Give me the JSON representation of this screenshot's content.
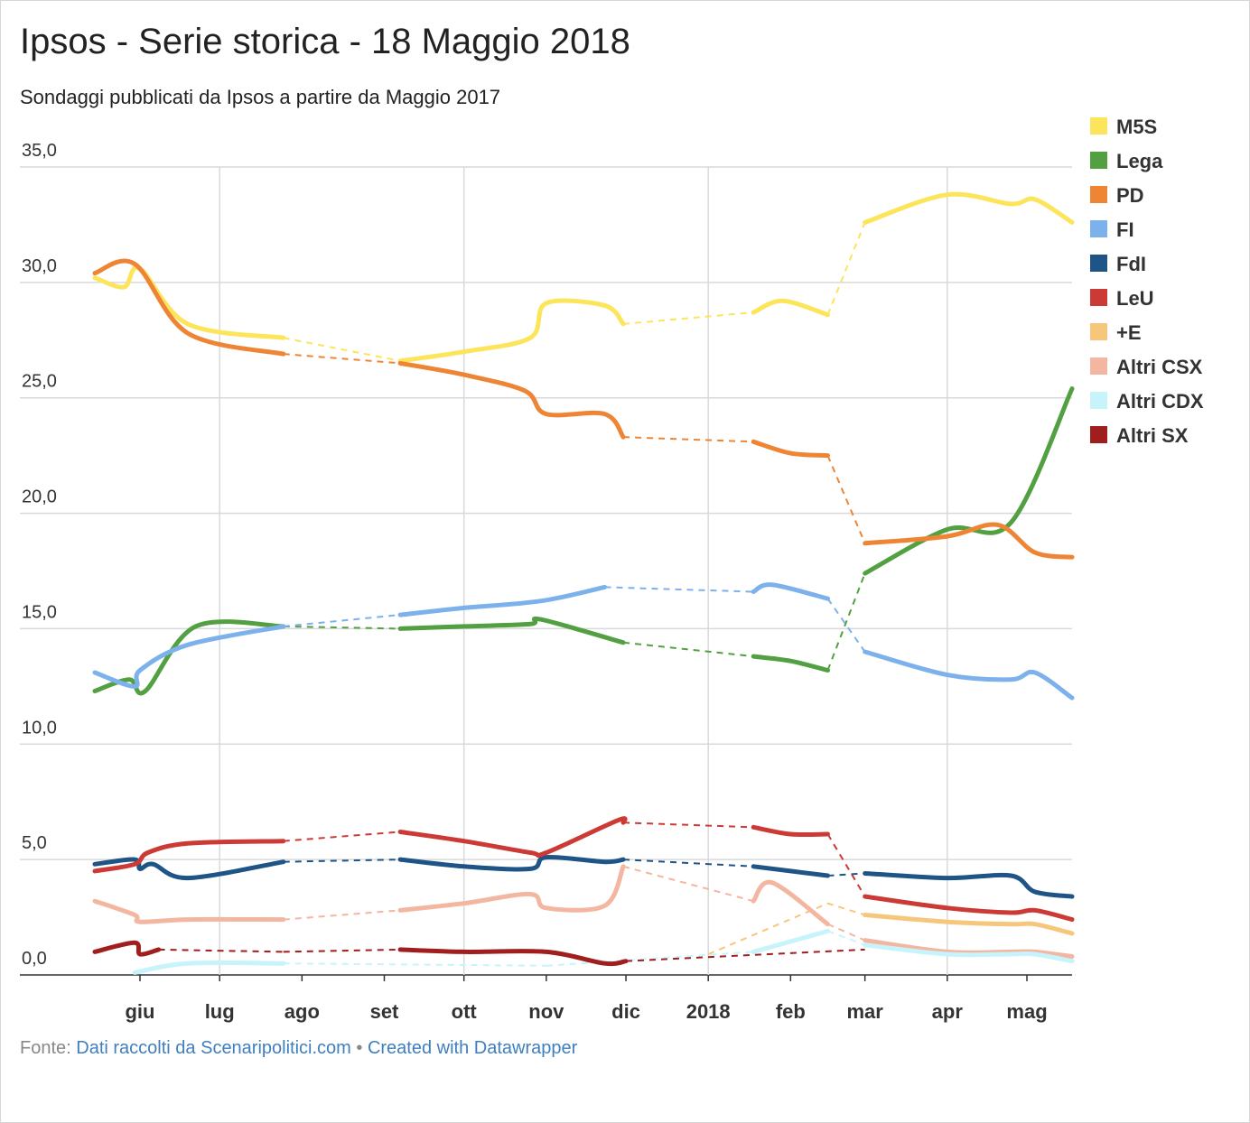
{
  "title": "Ipsos - Serie storica - 18 Maggio 2018",
  "subtitle": "Sondaggi pubblicati da Ipsos a partire da Maggio 2017",
  "footer": {
    "prefix": "Fonte: ",
    "source_link": "Dati raccolti da Scenaripolitici.com",
    "separator": " • ",
    "credit_link": "Created with Datawrapper"
  },
  "chart_data": {
    "type": "line",
    "ylim": [
      0,
      35
    ],
    "yticks": [
      "35,0",
      "30,0",
      "25,0",
      "20,0",
      "15,0",
      "10,0",
      "5,0",
      "0,0"
    ],
    "yticks_values": [
      35,
      30,
      25,
      20,
      15,
      10,
      5,
      0
    ],
    "x_range": [
      "2017-05-15",
      "2018-05-18"
    ],
    "xticks": [
      {
        "label": "giu",
        "date": "2017-06-01"
      },
      {
        "label": "lug",
        "date": "2017-07-01"
      },
      {
        "label": "ago",
        "date": "2017-08-01"
      },
      {
        "label": "set",
        "date": "2017-09-01"
      },
      {
        "label": "ott",
        "date": "2017-10-01"
      },
      {
        "label": "nov",
        "date": "2017-11-01"
      },
      {
        "label": "dic",
        "date": "2017-12-01"
      },
      {
        "label": "2018",
        "date": "2018-01-01"
      },
      {
        "label": "feb",
        "date": "2018-02-01"
      },
      {
        "label": "mar",
        "date": "2018-03-01"
      },
      {
        "label": "apr",
        "date": "2018-04-01"
      },
      {
        "label": "mag",
        "date": "2018-05-01"
      }
    ],
    "gridlines": [
      "2017-07-01",
      "2017-10-01",
      "2018-01-01",
      "2018-04-01"
    ],
    "grid": true,
    "legend_position": "right",
    "gaps": [
      [
        "2017-07-25",
        "2017-09-07"
      ],
      [
        "2018-02-15",
        "2018-03-01"
      ]
    ],
    "series": [
      {
        "name": "M5S",
        "color": "#fce55b",
        "points": [
          [
            "2017-05-15",
            30.2
          ],
          [
            "2017-05-26",
            29.8
          ],
          [
            "2017-06-01",
            30.6
          ],
          [
            "2017-06-19",
            28.2
          ],
          [
            "2017-07-25",
            27.6
          ],
          [
            "2017-09-07",
            26.6
          ],
          [
            "2017-10-01",
            27.0
          ],
          [
            "2017-10-26",
            27.6
          ],
          [
            "2017-11-01",
            29.1
          ],
          [
            "2017-11-23",
            29.0
          ],
          [
            "2017-11-30",
            28.2
          ],
          [
            "2018-01-18",
            28.7
          ],
          [
            "2018-01-29",
            29.2
          ],
          [
            "2018-02-15",
            28.6
          ],
          [
            "2018-03-01",
            32.6
          ],
          [
            "2018-04-01",
            33.8
          ],
          [
            "2018-04-25",
            33.4
          ],
          [
            "2018-05-04",
            33.6
          ],
          [
            "2018-05-18",
            32.6
          ]
        ]
      },
      {
        "name": "Lega",
        "color": "#52a042",
        "points": [
          [
            "2017-05-15",
            12.3
          ],
          [
            "2017-05-28",
            12.8
          ],
          [
            "2017-06-03",
            12.3
          ],
          [
            "2017-06-22",
            15.1
          ],
          [
            "2017-07-25",
            15.1
          ],
          [
            "2017-09-07",
            15.0
          ],
          [
            "2017-10-01",
            15.1
          ],
          [
            "2017-10-26",
            15.2
          ],
          [
            "2017-10-30",
            15.4
          ],
          [
            "2017-11-30",
            14.4
          ],
          [
            "2018-01-18",
            13.8
          ],
          [
            "2018-02-01",
            13.6
          ],
          [
            "2018-02-15",
            13.2
          ],
          [
            "2018-03-01",
            17.4
          ],
          [
            "2018-04-01",
            19.3
          ],
          [
            "2018-04-25",
            19.6
          ],
          [
            "2018-05-18",
            25.4
          ]
        ]
      },
      {
        "name": "PD",
        "color": "#ee8535",
        "points": [
          [
            "2017-05-15",
            30.4
          ],
          [
            "2017-05-30",
            30.8
          ],
          [
            "2017-06-19",
            27.8
          ],
          [
            "2017-07-25",
            26.9
          ],
          [
            "2017-09-07",
            26.5
          ],
          [
            "2017-10-01",
            26.0
          ],
          [
            "2017-10-24",
            25.3
          ],
          [
            "2017-11-01",
            24.3
          ],
          [
            "2017-11-23",
            24.3
          ],
          [
            "2017-11-30",
            23.3
          ],
          [
            "2018-01-18",
            23.1
          ],
          [
            "2018-02-01",
            22.6
          ],
          [
            "2018-02-15",
            22.5
          ],
          [
            "2018-03-01",
            18.7
          ],
          [
            "2018-04-01",
            19.0
          ],
          [
            "2018-04-20",
            19.5
          ],
          [
            "2018-05-04",
            18.3
          ],
          [
            "2018-05-18",
            18.1
          ]
        ]
      },
      {
        "name": "FI",
        "color": "#7cb1ec",
        "points": [
          [
            "2017-05-15",
            13.1
          ],
          [
            "2017-05-30",
            12.5
          ],
          [
            "2017-06-01",
            13.2
          ],
          [
            "2017-06-19",
            14.3
          ],
          [
            "2017-07-25",
            15.1
          ],
          [
            "2017-09-07",
            15.6
          ],
          [
            "2017-10-01",
            15.9
          ],
          [
            "2017-10-30",
            16.2
          ],
          [
            "2017-11-23",
            16.8
          ],
          [
            "2018-01-18",
            16.6
          ],
          [
            "2018-01-25",
            16.9
          ],
          [
            "2018-02-15",
            16.3
          ],
          [
            "2018-03-01",
            14.0
          ],
          [
            "2018-04-01",
            13.0
          ],
          [
            "2018-04-25",
            12.8
          ],
          [
            "2018-05-04",
            13.1
          ],
          [
            "2018-05-18",
            12.0
          ]
        ]
      },
      {
        "name": "FdI",
        "color": "#1e5486",
        "points": [
          [
            "2017-05-15",
            4.8
          ],
          [
            "2017-05-30",
            5.0
          ],
          [
            "2017-06-01",
            4.6
          ],
          [
            "2017-06-06",
            4.8
          ],
          [
            "2017-06-19",
            4.2
          ],
          [
            "2017-07-25",
            4.9
          ],
          [
            "2017-09-07",
            5.0
          ],
          [
            "2017-10-01",
            4.7
          ],
          [
            "2017-10-26",
            4.6
          ],
          [
            "2017-11-01",
            5.1
          ],
          [
            "2017-11-23",
            4.9
          ],
          [
            "2017-11-30",
            5.0
          ],
          [
            "2018-01-18",
            4.7
          ],
          [
            "2018-02-15",
            4.3
          ],
          [
            "2018-03-01",
            4.4
          ],
          [
            "2018-04-01",
            4.2
          ],
          [
            "2018-04-25",
            4.3
          ],
          [
            "2018-05-04",
            3.6
          ],
          [
            "2018-05-18",
            3.4
          ]
        ]
      },
      {
        "name": "LeU",
        "color": "#cc3a35",
        "points": [
          [
            "2017-05-15",
            4.5
          ],
          [
            "2017-05-30",
            4.8
          ],
          [
            "2017-06-04",
            5.3
          ],
          [
            "2017-06-19",
            5.7
          ],
          [
            "2017-07-25",
            5.8
          ],
          [
            "2017-09-07",
            6.2
          ],
          [
            "2017-10-01",
            5.8
          ],
          [
            "2017-10-26",
            5.3
          ],
          [
            "2017-11-01",
            5.3
          ],
          [
            "2017-11-28",
            6.7
          ],
          [
            "2017-11-30",
            6.6
          ],
          [
            "2018-01-18",
            6.4
          ],
          [
            "2018-02-01",
            6.1
          ],
          [
            "2018-02-15",
            6.1
          ],
          [
            "2018-03-01",
            3.4
          ],
          [
            "2018-04-01",
            2.9
          ],
          [
            "2018-04-25",
            2.7
          ],
          [
            "2018-05-04",
            2.8
          ],
          [
            "2018-05-18",
            2.4
          ]
        ]
      },
      {
        "name": "+E",
        "color": "#f6c77b",
        "points": [
          [
            "2018-03-01",
            2.6
          ],
          [
            "2018-04-01",
            2.3
          ],
          [
            "2018-04-25",
            2.2
          ],
          [
            "2018-05-04",
            2.2
          ],
          [
            "2018-05-18",
            1.8
          ]
        ],
        "dashed_lead": [
          [
            "2018-01-01",
            0.9
          ],
          [
            "2018-02-15",
            3.1
          ],
          [
            "2018-03-01",
            2.6
          ]
        ]
      },
      {
        "name": "Altri CSX",
        "color": "#f3b6a0",
        "points": [
          [
            "2017-05-15",
            3.2
          ],
          [
            "2017-05-30",
            2.6
          ],
          [
            "2017-06-01",
            2.3
          ],
          [
            "2017-06-19",
            2.4
          ],
          [
            "2017-07-25",
            2.4
          ],
          [
            "2017-09-07",
            2.8
          ],
          [
            "2017-10-01",
            3.1
          ],
          [
            "2017-10-26",
            3.5
          ],
          [
            "2017-11-01",
            2.9
          ],
          [
            "2017-11-23",
            3.0
          ],
          [
            "2017-11-30",
            4.7
          ],
          [
            "2018-01-18",
            3.2
          ],
          [
            "2018-01-25",
            4.0
          ],
          [
            "2018-02-15",
            2.2
          ],
          [
            "2018-03-01",
            1.5
          ],
          [
            "2018-04-01",
            1.0
          ],
          [
            "2018-04-25",
            1.0
          ],
          [
            "2018-05-04",
            1.0
          ],
          [
            "2018-05-18",
            0.8
          ]
        ]
      },
      {
        "name": "Altri CDX",
        "color": "#c7f3fb",
        "points": [
          [
            "2017-05-30",
            0.1
          ],
          [
            "2017-06-19",
            0.5
          ],
          [
            "2017-07-25",
            0.5
          ],
          [
            "2017-11-01",
            0.4
          ],
          [
            "2018-01-18",
            1.0
          ],
          [
            "2018-02-15",
            1.9
          ],
          [
            "2018-03-01",
            1.3
          ],
          [
            "2018-04-01",
            0.9
          ],
          [
            "2018-04-25",
            0.9
          ],
          [
            "2018-05-04",
            0.9
          ],
          [
            "2018-05-18",
            0.6
          ]
        ]
      },
      {
        "name": "Altri SX",
        "color": "#a01e1e",
        "points": [
          [
            "2017-05-15",
            1.0
          ],
          [
            "2017-05-30",
            1.4
          ],
          [
            "2017-06-01",
            0.9
          ],
          [
            "2017-06-08",
            1.1
          ],
          [
            "2017-07-25",
            1.0
          ],
          [
            "2017-09-07",
            1.1
          ],
          [
            "2017-10-01",
            1.0
          ],
          [
            "2017-11-01",
            1.0
          ],
          [
            "2017-11-23",
            0.5
          ],
          [
            "2017-12-01",
            0.6
          ]
        ],
        "dashed_tail": [
          [
            "2017-12-01",
            0.6
          ],
          [
            "2018-03-01",
            1.1
          ]
        ]
      }
    ]
  }
}
